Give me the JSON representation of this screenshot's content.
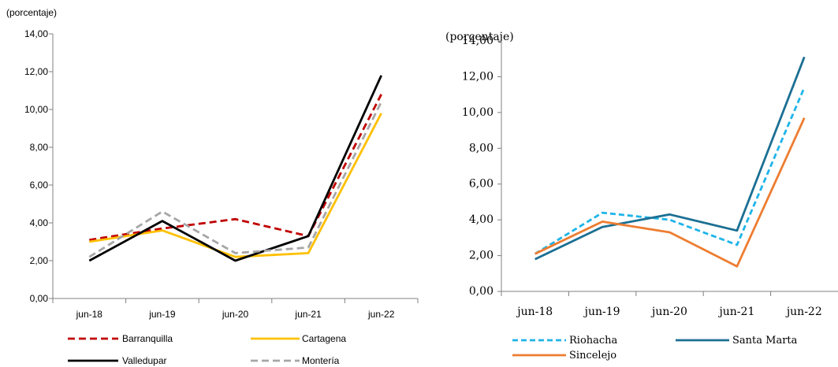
{
  "chart_data": [
    {
      "type": "line",
      "unit_label": "(porcentaje)",
      "categories": [
        "jun-18",
        "jun-19",
        "jun-20",
        "jun-21",
        "jun-22"
      ],
      "y_ticks": [
        "0,00",
        "2,00",
        "4,00",
        "6,00",
        "8,00",
        "10,00",
        "12,00",
        "14,00"
      ],
      "ylim": [
        0,
        14
      ],
      "grid": false,
      "legend_position": "bottom",
      "series": [
        {
          "name": "Barranquilla",
          "values": [
            3.1,
            3.7,
            4.2,
            3.3,
            10.8
          ],
          "color": "#c00000",
          "dash": true
        },
        {
          "name": "Cartagena",
          "values": [
            3.0,
            3.6,
            2.2,
            2.4,
            9.8
          ],
          "color": "#ffc000",
          "dash": false
        },
        {
          "name": "Valledupar",
          "values": [
            2.0,
            4.1,
            2.0,
            3.3,
            11.8
          ],
          "color": "#000000",
          "dash": false
        },
        {
          "name": "Montería",
          "values": [
            2.2,
            4.6,
            2.4,
            2.7,
            10.4
          ],
          "color": "#a6a6a6",
          "dash": true
        }
      ]
    },
    {
      "type": "line",
      "unit_label": "(porcentaje)",
      "categories": [
        "jun-18",
        "jun-19",
        "jun-20",
        "jun-21",
        "jun-22"
      ],
      "y_ticks": [
        "0,00",
        "2,00",
        "4,00",
        "6,00",
        "8,00",
        "10,00",
        "12,00",
        "14,00"
      ],
      "ylim": [
        0,
        14
      ],
      "grid": false,
      "legend_position": "bottom",
      "series": [
        {
          "name": "Riohacha",
          "values": [
            2.1,
            4.4,
            4.0,
            2.6,
            11.4
          ],
          "color": "#1fb4e8",
          "dash": true
        },
        {
          "name": "Santa Marta",
          "values": [
            1.8,
            3.6,
            4.3,
            3.4,
            13.1
          ],
          "color": "#1b6f93",
          "dash": false
        },
        {
          "name": "Sincelejo",
          "values": [
            2.1,
            3.9,
            3.3,
            1.4,
            9.7
          ],
          "color": "#ed7d31",
          "dash": false
        }
      ]
    }
  ]
}
